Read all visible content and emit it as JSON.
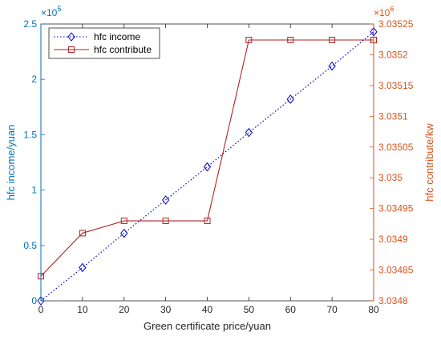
{
  "chart_data": {
    "type": "line",
    "xlabel": "Green certificate price/yuan",
    "x_ticks": [
      "0",
      "10",
      "20",
      "30",
      "40",
      "50",
      "60",
      "70",
      "80"
    ],
    "xlim": [
      0,
      80
    ],
    "left_axis": {
      "label": "hfc income/yuan",
      "multiplier": "×10",
      "multiplier_exp": "5",
      "ticks": [
        "0",
        "0.5",
        "1",
        "1.5",
        "2",
        "2.5"
      ],
      "ylim": [
        0,
        2.5
      ],
      "color": "#0072BD"
    },
    "right_axis": {
      "label": "hfc contribute/kw",
      "multiplier": "×10",
      "multiplier_exp": "6",
      "ticks": [
        "3.0348",
        "3.03485",
        "3.0349",
        "3.03495",
        "3.035",
        "3.03505",
        "3.0351",
        "3.03515",
        "3.0352",
        "3.03525"
      ],
      "ylim": [
        3.0348,
        3.03525
      ],
      "color": "#D95319"
    },
    "legend_position": "top-left",
    "series": [
      {
        "name": "hfc income",
        "axis": "left",
        "marker": "diamond",
        "line_style": "dotted",
        "color": "#0000CC",
        "x": [
          0,
          10,
          20,
          30,
          40,
          50,
          60,
          70,
          80
        ],
        "values": [
          0,
          0.3,
          0.61,
          0.91,
          1.21,
          1.52,
          1.82,
          2.12,
          2.43
        ]
      },
      {
        "name": "hfc contribute",
        "axis": "right",
        "marker": "square",
        "line_style": "solid",
        "color": "#B22222",
        "x": [
          0,
          10,
          20,
          30,
          40,
          50,
          60,
          70,
          80
        ],
        "values": [
          3.03484,
          3.03491,
          3.03493,
          3.03493,
          3.03493,
          3.035224,
          3.035224,
          3.035224,
          3.035224
        ]
      }
    ]
  }
}
